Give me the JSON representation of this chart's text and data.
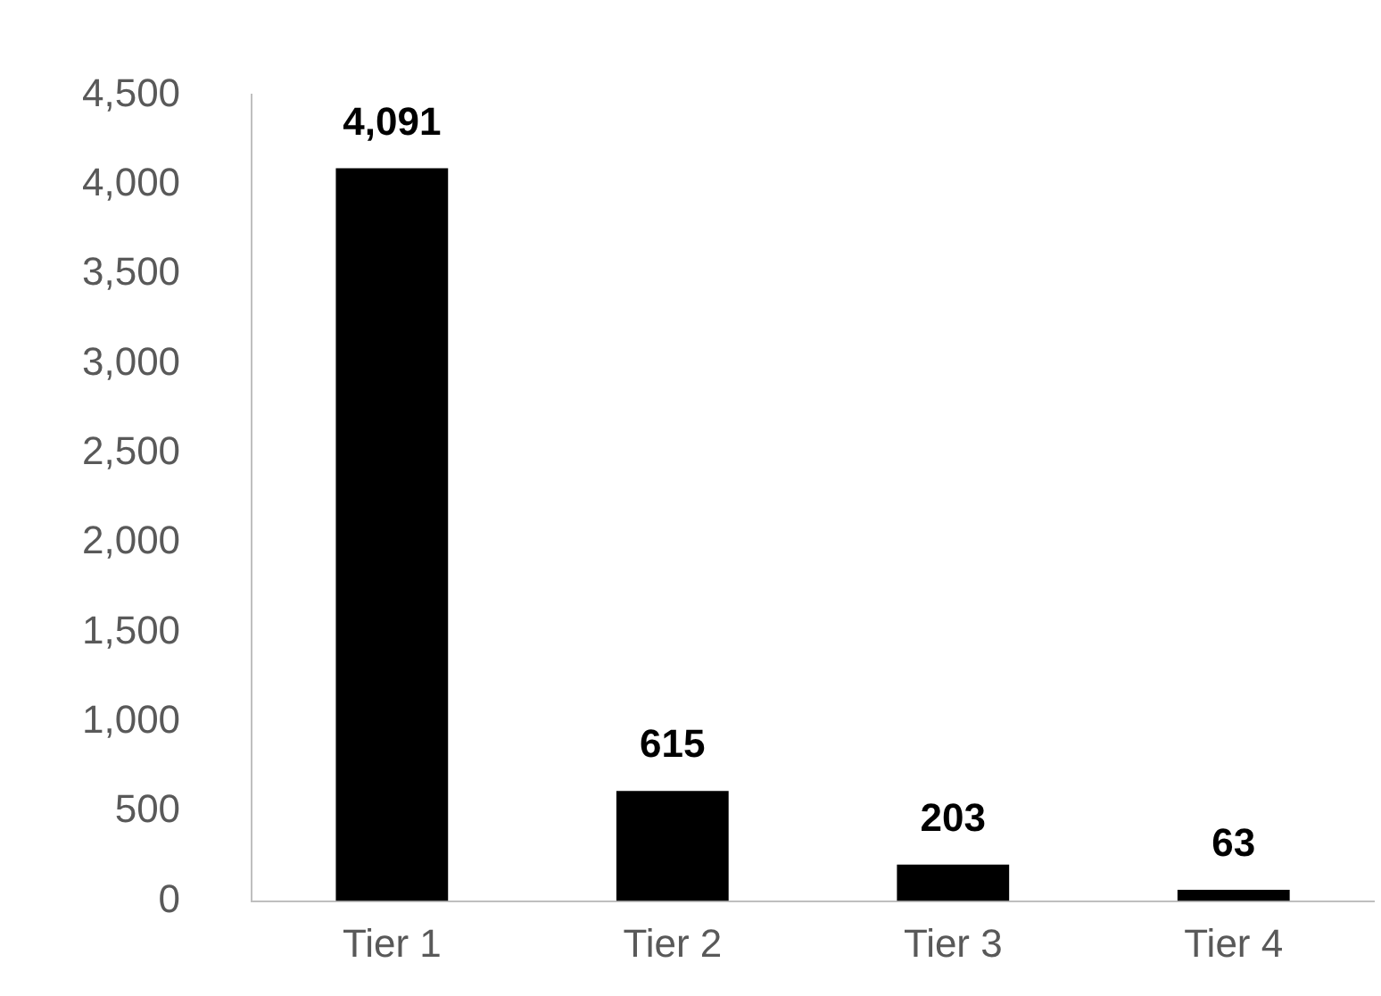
{
  "chart_data": {
    "type": "bar",
    "categories": [
      "Tier 1",
      "Tier 2",
      "Tier 3",
      "Tier 4"
    ],
    "values": [
      4091,
      615,
      203,
      63
    ],
    "value_labels": [
      "4,091",
      "615",
      "203",
      "63"
    ],
    "color": "#000000",
    "ylim": [
      0,
      4500
    ],
    "yticks": [
      0,
      500,
      {
        "value": 1000,
        "label": "1,000"
      },
      {
        "value": 1500,
        "label": "1,500"
      },
      {
        "value": 2000,
        "label": "2,000"
      },
      {
        "value": 2500,
        "label": "2,500"
      },
      {
        "value": 3000,
        "label": "3,000"
      },
      {
        "value": 3500,
        "label": "3,500"
      },
      {
        "value": 4000,
        "label": "4,000"
      },
      {
        "value": 4500,
        "label": "4,500"
      }
    ],
    "grid": false,
    "legend": false
  }
}
